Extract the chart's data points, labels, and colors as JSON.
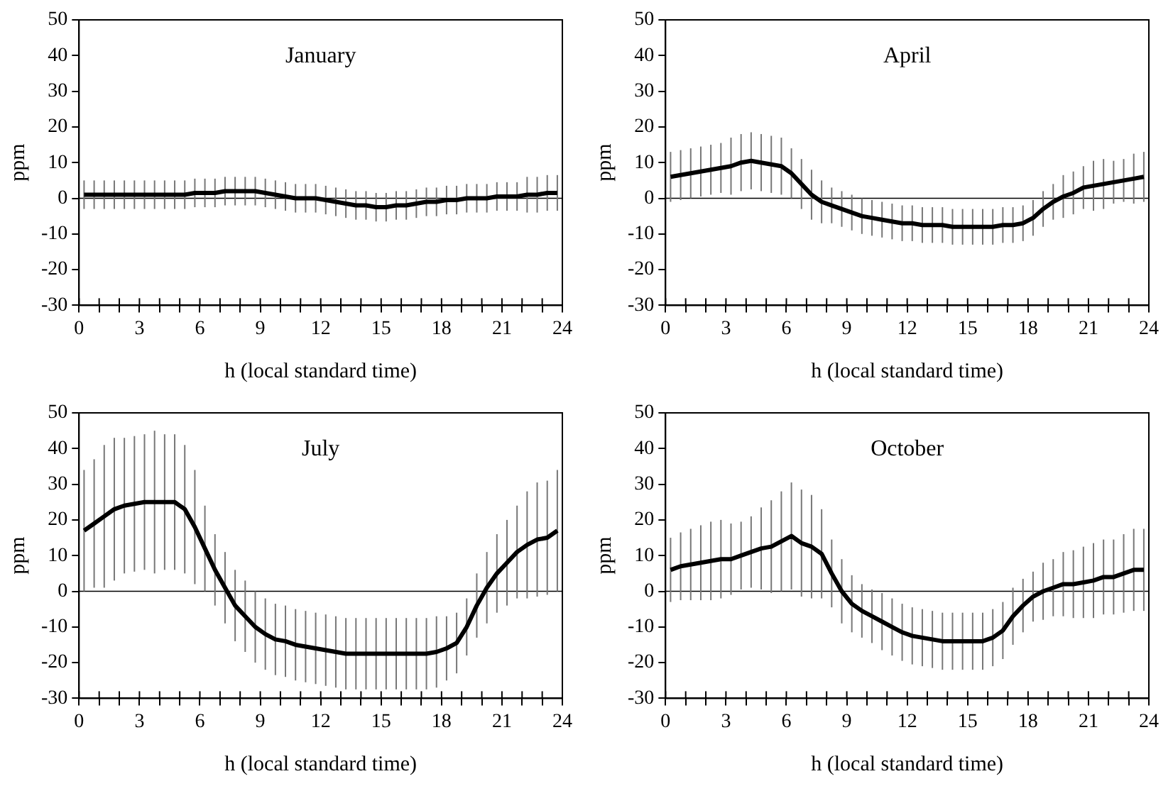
{
  "chart_data": [
    {
      "type": "line",
      "title": "January",
      "xlabel": "h (local standard time)",
      "ylabel": "ppm",
      "x": [
        0.25,
        0.75,
        1.25,
        1.75,
        2.25,
        2.75,
        3.25,
        3.75,
        4.25,
        4.75,
        5.25,
        5.75,
        6.25,
        6.75,
        7.25,
        7.75,
        8.25,
        8.75,
        9.25,
        9.75,
        10.25,
        10.75,
        11.25,
        11.75,
        12.25,
        12.75,
        13.25,
        13.75,
        14.25,
        14.75,
        15.25,
        15.75,
        16.25,
        16.75,
        17.25,
        17.75,
        18.25,
        18.75,
        19.25,
        19.75,
        20.25,
        20.75,
        21.25,
        21.75,
        22.25,
        22.75,
        23.25,
        23.75
      ],
      "xlim": [
        0,
        24
      ],
      "xticks": [
        0,
        {
          "value": 1,
          "label": null
        },
        {
          "value": 2,
          "label": null
        },
        3,
        {
          "value": 4,
          "label": null
        },
        {
          "value": 5,
          "label": null
        },
        6,
        {
          "value": 7,
          "label": null
        },
        {
          "value": 8,
          "label": null
        },
        9,
        {
          "value": 10,
          "label": null
        },
        {
          "value": 11,
          "label": null
        },
        12,
        {
          "value": 13,
          "label": null
        },
        {
          "value": 14,
          "label": null
        },
        15,
        {
          "value": 16,
          "label": null
        },
        {
          "value": 17,
          "label": null
        },
        18,
        {
          "value": 19,
          "label": null
        },
        {
          "value": 20,
          "label": null
        },
        21,
        {
          "value": 22,
          "label": null
        },
        {
          "value": 23,
          "label": null
        },
        24
      ],
      "ylim": [
        -30,
        50
      ],
      "yticks": [
        -30,
        -20,
        -10,
        0,
        10,
        20,
        30,
        40,
        50
      ],
      "grid": false,
      "marker": "none",
      "ref_lines": [
        {
          "axis": "y",
          "value": 0,
          "color": "#000000"
        }
      ],
      "series": [
        {
          "color": "#000000",
          "values": [
            1,
            1,
            1,
            1,
            1,
            1,
            1,
            1,
            1,
            1,
            1,
            1.5,
            1.5,
            1.5,
            2,
            2,
            2,
            2,
            1.5,
            1,
            0.5,
            0,
            0,
            0,
            -0.5,
            -1,
            -1.5,
            -2,
            -2,
            -2.5,
            -2.5,
            -2,
            -2,
            -1.5,
            -1,
            -1,
            -0.5,
            -0.5,
            0,
            0,
            0,
            0.5,
            0.5,
            0.5,
            1,
            1,
            1.5,
            1.5
          ],
          "errors": [
            4,
            4,
            4,
            4,
            4,
            4,
            4,
            4,
            4,
            4,
            4,
            4,
            4,
            4,
            4,
            4,
            4,
            4,
            4,
            4,
            4,
            4,
            4,
            4,
            4,
            4,
            4,
            4,
            4,
            4,
            4,
            4,
            4,
            4,
            4,
            4,
            4,
            4,
            4,
            4,
            4,
            4,
            4,
            4,
            5,
            5,
            5,
            5
          ]
        }
      ]
    },
    {
      "type": "line",
      "title": "April",
      "xlabel": "h (local standard time)",
      "ylabel": "ppm",
      "x": [
        0.25,
        0.75,
        1.25,
        1.75,
        2.25,
        2.75,
        3.25,
        3.75,
        4.25,
        4.75,
        5.25,
        5.75,
        6.25,
        6.75,
        7.25,
        7.75,
        8.25,
        8.75,
        9.25,
        9.75,
        10.25,
        10.75,
        11.25,
        11.75,
        12.25,
        12.75,
        13.25,
        13.75,
        14.25,
        14.75,
        15.25,
        15.75,
        16.25,
        16.75,
        17.25,
        17.75,
        18.25,
        18.75,
        19.25,
        19.75,
        20.25,
        20.75,
        21.25,
        21.75,
        22.25,
        22.75,
        23.25,
        23.75
      ],
      "xlim": [
        0,
        24
      ],
      "xticks": [
        0,
        {
          "value": 1,
          "label": null
        },
        {
          "value": 2,
          "label": null
        },
        3,
        {
          "value": 4,
          "label": null
        },
        {
          "value": 5,
          "label": null
        },
        6,
        {
          "value": 7,
          "label": null
        },
        {
          "value": 8,
          "label": null
        },
        9,
        {
          "value": 10,
          "label": null
        },
        {
          "value": 11,
          "label": null
        },
        12,
        {
          "value": 13,
          "label": null
        },
        {
          "value": 14,
          "label": null
        },
        15,
        {
          "value": 16,
          "label": null
        },
        {
          "value": 17,
          "label": null
        },
        18,
        {
          "value": 19,
          "label": null
        },
        {
          "value": 20,
          "label": null
        },
        21,
        {
          "value": 22,
          "label": null
        },
        {
          "value": 23,
          "label": null
        },
        24
      ],
      "ylim": [
        -30,
        50
      ],
      "yticks": [
        -30,
        -20,
        -10,
        0,
        10,
        20,
        30,
        40,
        50
      ],
      "grid": false,
      "marker": "none",
      "ref_lines": [
        {
          "axis": "y",
          "value": 0,
          "color": "#000000"
        }
      ],
      "series": [
        {
          "color": "#000000",
          "values": [
            6,
            6.5,
            7,
            7.5,
            8,
            8.5,
            9,
            10,
            10.5,
            10,
            9.5,
            9,
            7,
            4,
            1,
            -1,
            -2,
            -3,
            -4,
            -5,
            -5.5,
            -6,
            -6.5,
            -7,
            -7,
            -7.5,
            -7.5,
            -7.5,
            -8,
            -8,
            -8,
            -8,
            -8,
            -7.5,
            -7.5,
            -7,
            -5.5,
            -3,
            -1,
            0.5,
            1.5,
            3,
            3.5,
            4,
            4.5,
            5,
            5.5,
            6
          ],
          "errors": [
            7,
            7,
            7,
            7,
            7,
            7,
            8,
            8,
            8,
            8,
            8,
            8,
            7,
            7,
            7,
            6,
            5,
            5,
            5,
            5,
            5,
            5,
            5,
            5,
            5,
            5,
            5,
            5,
            5,
            5,
            5,
            5,
            5,
            5,
            5,
            5,
            5,
            5,
            5,
            6,
            6,
            6,
            7,
            7,
            6,
            6,
            7,
            7
          ]
        }
      ]
    },
    {
      "type": "line",
      "title": "July",
      "xlabel": "h (local standard time)",
      "ylabel": "ppm",
      "x": [
        0.25,
        0.75,
        1.25,
        1.75,
        2.25,
        2.75,
        3.25,
        3.75,
        4.25,
        4.75,
        5.25,
        5.75,
        6.25,
        6.75,
        7.25,
        7.75,
        8.25,
        8.75,
        9.25,
        9.75,
        10.25,
        10.75,
        11.25,
        11.75,
        12.25,
        12.75,
        13.25,
        13.75,
        14.25,
        14.75,
        15.25,
        15.75,
        16.25,
        16.75,
        17.25,
        17.75,
        18.25,
        18.75,
        19.25,
        19.75,
        20.25,
        20.75,
        21.25,
        21.75,
        22.25,
        22.75,
        23.25,
        23.75
      ],
      "xlim": [
        0,
        24
      ],
      "xticks": [
        0,
        {
          "value": 1,
          "label": null
        },
        {
          "value": 2,
          "label": null
        },
        3,
        {
          "value": 4,
          "label": null
        },
        {
          "value": 5,
          "label": null
        },
        6,
        {
          "value": 7,
          "label": null
        },
        {
          "value": 8,
          "label": null
        },
        9,
        {
          "value": 10,
          "label": null
        },
        {
          "value": 11,
          "label": null
        },
        12,
        {
          "value": 13,
          "label": null
        },
        {
          "value": 14,
          "label": null
        },
        15,
        {
          "value": 16,
          "label": null
        },
        {
          "value": 17,
          "label": null
        },
        18,
        {
          "value": 19,
          "label": null
        },
        {
          "value": 20,
          "label": null
        },
        21,
        {
          "value": 22,
          "label": null
        },
        {
          "value": 23,
          "label": null
        },
        24
      ],
      "ylim": [
        -30,
        50
      ],
      "yticks": [
        -30,
        -20,
        -10,
        0,
        10,
        20,
        30,
        40,
        50
      ],
      "grid": false,
      "marker": "none",
      "ref_lines": [
        {
          "axis": "y",
          "value": 0,
          "color": "#000000"
        }
      ],
      "series": [
        {
          "color": "#000000",
          "values": [
            17,
            19,
            21,
            23,
            24,
            24.5,
            25,
            25,
            25,
            25,
            23,
            18,
            12,
            6,
            1,
            -4,
            -7,
            -10,
            -12,
            -13.5,
            -14,
            -15,
            -15.5,
            -16,
            -16.5,
            -17,
            -17.5,
            -17.5,
            -17.5,
            -17.5,
            -17.5,
            -17.5,
            -17.5,
            -17.5,
            -17.5,
            -17,
            -16,
            -14.5,
            -10,
            -4,
            1,
            5,
            8,
            11,
            13,
            14.5,
            15,
            17
          ],
          "errors": [
            17,
            18,
            20,
            20,
            19,
            19,
            19,
            20,
            19,
            19,
            18,
            16,
            12,
            10,
            10,
            10,
            10,
            10,
            10,
            10,
            10,
            10,
            10,
            10,
            10,
            10,
            10,
            10,
            10,
            10,
            10,
            10,
            10,
            10,
            10,
            10,
            9,
            8.5,
            8,
            9,
            10,
            11,
            12,
            13,
            15,
            16,
            16,
            17
          ]
        }
      ]
    },
    {
      "type": "line",
      "title": "October",
      "xlabel": "h (local standard time)",
      "ylabel": "ppm",
      "x": [
        0.25,
        0.75,
        1.25,
        1.75,
        2.25,
        2.75,
        3.25,
        3.75,
        4.25,
        4.75,
        5.25,
        5.75,
        6.25,
        6.75,
        7.25,
        7.75,
        8.25,
        8.75,
        9.25,
        9.75,
        10.25,
        10.75,
        11.25,
        11.75,
        12.25,
        12.75,
        13.25,
        13.75,
        14.25,
        14.75,
        15.25,
        15.75,
        16.25,
        16.75,
        17.25,
        17.75,
        18.25,
        18.75,
        19.25,
        19.75,
        20.25,
        20.75,
        21.25,
        21.75,
        22.25,
        22.75,
        23.25,
        23.75
      ],
      "xlim": [
        0,
        24
      ],
      "xticks": [
        0,
        {
          "value": 1,
          "label": null
        },
        {
          "value": 2,
          "label": null
        },
        3,
        {
          "value": 4,
          "label": null
        },
        {
          "value": 5,
          "label": null
        },
        6,
        {
          "value": 7,
          "label": null
        },
        {
          "value": 8,
          "label": null
        },
        9,
        {
          "value": 10,
          "label": null
        },
        {
          "value": 11,
          "label": null
        },
        12,
        {
          "value": 13,
          "label": null
        },
        {
          "value": 14,
          "label": null
        },
        15,
        {
          "value": 16,
          "label": null
        },
        {
          "value": 17,
          "label": null
        },
        18,
        {
          "value": 19,
          "label": null
        },
        {
          "value": 20,
          "label": null
        },
        21,
        {
          "value": 22,
          "label": null
        },
        {
          "value": 23,
          "label": null
        },
        24
      ],
      "ylim": [
        -30,
        50
      ],
      "yticks": [
        -30,
        -20,
        -10,
        0,
        10,
        20,
        30,
        40,
        50
      ],
      "grid": false,
      "marker": "none",
      "ref_lines": [
        {
          "axis": "y",
          "value": 0,
          "color": "#000000"
        }
      ],
      "series": [
        {
          "color": "#000000",
          "values": [
            6,
            7,
            7.5,
            8,
            8.5,
            9,
            9,
            10,
            11,
            12,
            12.5,
            14,
            15.5,
            13.5,
            12.5,
            10.5,
            5,
            0,
            -3.5,
            -5.5,
            -7,
            -8.5,
            -10,
            -11.5,
            -12.5,
            -13,
            -13.5,
            -14,
            -14,
            -14,
            -14,
            -14,
            -13,
            -11,
            -7,
            -4,
            -1.5,
            0,
            1,
            2,
            2,
            2.5,
            3,
            4,
            4,
            5,
            6,
            6
          ],
          "errors": [
            9,
            9.5,
            10,
            10.5,
            11,
            11,
            10,
            9.5,
            10,
            11.5,
            13,
            14,
            15,
            15,
            14.5,
            12.5,
            9.5,
            9,
            8,
            7.5,
            7.5,
            8,
            8,
            8,
            8,
            8,
            8,
            8,
            8,
            8,
            8,
            8,
            8,
            8,
            8,
            7.5,
            7,
            8,
            8,
            9,
            9.5,
            10,
            10.5,
            10.5,
            10.5,
            11,
            11.5,
            11.5
          ]
        }
      ]
    }
  ]
}
